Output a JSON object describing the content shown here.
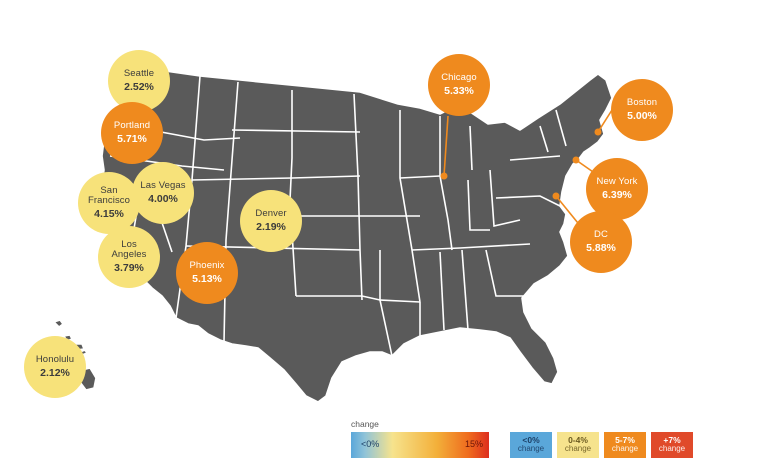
{
  "colors": {
    "land": "#5a5a5a",
    "yellow": "#f7e27a",
    "orange": "#ef8a1e",
    "legend_blue": "#5aa7da",
    "legend_yellow": "#f6e38d",
    "legend_orange": "#ef8a1e",
    "legend_red": "#e04a2a"
  },
  "cities": [
    {
      "name": "Seattle",
      "value": "2.52%",
      "tier": "yellow"
    },
    {
      "name": "Portland",
      "value": "5.71%",
      "tier": "orange"
    },
    {
      "name": "San\nFrancisco",
      "value": "4.15%",
      "tier": "yellow"
    },
    {
      "name": "Las Vegas",
      "value": "4.00%",
      "tier": "yellow"
    },
    {
      "name": "Los\nAngeles",
      "value": "3.79%",
      "tier": "yellow"
    },
    {
      "name": "Denver",
      "value": "2.19%",
      "tier": "yellow"
    },
    {
      "name": "Phoenix",
      "value": "5.13%",
      "tier": "orange"
    },
    {
      "name": "Honolulu",
      "value": "2.12%",
      "tier": "yellow"
    },
    {
      "name": "Chicago",
      "value": "5.33%",
      "tier": "orange"
    },
    {
      "name": "Boston",
      "value": "5.00%",
      "tier": "orange"
    },
    {
      "name": "New York",
      "value": "6.39%",
      "tier": "orange"
    },
    {
      "name": "DC",
      "value": "5.88%",
      "tier": "orange"
    }
  ],
  "legend": {
    "title": "change",
    "min_label": "<0%",
    "max_label": "15%",
    "boxes": [
      {
        "value": "<0%",
        "sub": "change",
        "color": "#5aa7da"
      },
      {
        "value": "0-4%",
        "sub": "change",
        "color": "#f6e38d"
      },
      {
        "value": "5-7%",
        "sub": "change",
        "color": "#ef8a1e"
      },
      {
        "value": "+7%",
        "sub": "change",
        "color": "#e04a2a"
      }
    ]
  }
}
